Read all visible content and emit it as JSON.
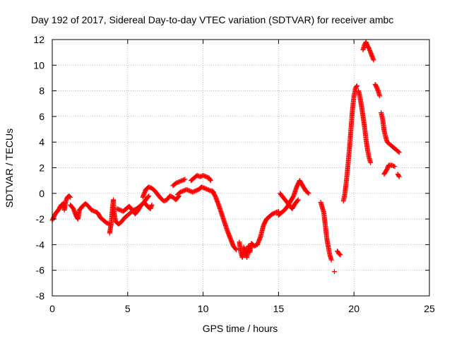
{
  "chart_data": {
    "type": "scatter",
    "title": "Day 192 of 2017, Sidereal Day-to-day VTEC variation (SDTVAR) for receiver ambc",
    "xlabel": "GPS time / hours",
    "ylabel": "SDTVAR / TECUs",
    "xlim": [
      0,
      25
    ],
    "ylim": [
      -8,
      12
    ],
    "xticks": [
      0,
      5,
      10,
      15,
      20,
      25
    ],
    "yticks": [
      -8,
      -6,
      -4,
      -2,
      0,
      2,
      4,
      6,
      8,
      10,
      12
    ],
    "x_tick_labels": [
      "0",
      "5",
      "10",
      "15",
      "20",
      "25"
    ],
    "y_tick_labels": [
      "-8",
      "-6",
      "-4",
      "-2",
      "0",
      "2",
      "4",
      "6",
      "8",
      "10",
      "12"
    ],
    "grid": true,
    "marker": "+",
    "colors": {
      "series": "#ff0000",
      "grid": "#a0a0a0",
      "axis": "#000000"
    },
    "series": [
      {
        "name": "SDTVAR",
        "segments": [
          [
            [
              0.0,
              -2.1
            ],
            [
              0.2,
              -1.6
            ],
            [
              0.4,
              -1.3
            ],
            [
              0.6,
              -0.9
            ],
            [
              0.75,
              -0.8
            ],
            [
              0.8,
              -1.3
            ],
            [
              0.9,
              -0.6
            ],
            [
              1.0,
              -0.3
            ],
            [
              1.1,
              -0.2
            ],
            [
              1.2,
              -0.3
            ]
          ],
          [
            [
              1.2,
              -0.9
            ],
            [
              1.4,
              -1.2
            ],
            [
              1.6,
              -1.8
            ],
            [
              1.7,
              -2.0
            ],
            [
              1.8,
              -1.3
            ],
            [
              2.0,
              -1.0
            ],
            [
              2.2,
              -0.8
            ],
            [
              2.4,
              -1.0
            ],
            [
              2.6,
              -1.3
            ],
            [
              2.8,
              -1.4
            ],
            [
              3.0,
              -1.5
            ],
            [
              3.2,
              -1.9
            ],
            [
              3.4,
              -2.1
            ],
            [
              3.6,
              -2.3
            ],
            [
              3.8,
              -2.4
            ]
          ],
          [
            [
              3.8,
              -3.1
            ],
            [
              3.9,
              -2.4
            ],
            [
              3.95,
              -1.8
            ],
            [
              4.0,
              -1.0
            ],
            [
              4.05,
              -0.5
            ],
            [
              4.1,
              -1.5
            ],
            [
              4.2,
              -2.2
            ],
            [
              4.4,
              -2.4
            ],
            [
              4.6,
              -2.2
            ],
            [
              4.8,
              -1.9
            ],
            [
              5.0,
              -1.7
            ],
            [
              5.2,
              -1.5
            ],
            [
              5.4,
              -1.3
            ],
            [
              5.6,
              -1.2
            ],
            [
              5.8,
              -1.0
            ],
            [
              6.0,
              -0.8
            ],
            [
              6.2,
              -0.5
            ],
            [
              6.4,
              -0.2
            ]
          ],
          [
            [
              4.3,
              -1.2
            ],
            [
              4.5,
              -1.3
            ],
            [
              4.7,
              -1.4
            ],
            [
              4.9,
              -1.2
            ],
            [
              5.1,
              -1.0
            ],
            [
              5.3,
              -1.3
            ],
            [
              5.5,
              -1.6
            ],
            [
              5.7,
              -1.3
            ],
            [
              5.9,
              -0.9
            ],
            [
              6.1,
              -0.7
            ],
            [
              6.3,
              -1.0
            ],
            [
              6.5,
              -1.2
            ],
            [
              6.6,
              -0.9
            ]
          ],
          [
            [
              6.0,
              -0.3
            ],
            [
              6.2,
              0.3
            ],
            [
              6.4,
              0.5
            ],
            [
              6.6,
              0.4
            ],
            [
              6.8,
              0.2
            ],
            [
              7.0,
              -0.1
            ],
            [
              7.2,
              -0.4
            ],
            [
              7.4,
              -0.6
            ],
            [
              7.6,
              -0.5
            ],
            [
              7.8,
              -0.2
            ],
            [
              8.0,
              -0.3
            ],
            [
              8.2,
              -0.5
            ],
            [
              8.4,
              -0.2
            ]
          ],
          [
            [
              8.0,
              0.6
            ],
            [
              8.2,
              0.8
            ],
            [
              8.4,
              0.9
            ],
            [
              8.6,
              1.0
            ],
            [
              8.8,
              1.1
            ]
          ],
          [
            [
              8.3,
              -0.1
            ],
            [
              8.5,
              0.1
            ],
            [
              8.7,
              0.2
            ],
            [
              8.9,
              0.3
            ],
            [
              9.1,
              0.2
            ],
            [
              9.3,
              0.1
            ],
            [
              9.5,
              0.2
            ],
            [
              9.7,
              0.3
            ],
            [
              9.9,
              0.5
            ],
            [
              10.1,
              0.4
            ],
            [
              10.3,
              0.3
            ],
            [
              10.5,
              0.2
            ],
            [
              10.7,
              0.1
            ]
          ],
          [
            [
              9.2,
              1.0
            ],
            [
              9.4,
              1.2
            ],
            [
              9.6,
              1.4
            ],
            [
              9.8,
              1.3
            ],
            [
              10.0,
              1.4
            ],
            [
              10.2,
              1.3
            ],
            [
              10.4,
              1.2
            ],
            [
              10.5,
              1.0
            ]
          ],
          [
            [
              10.6,
              0.2
            ],
            [
              10.8,
              -0.2
            ],
            [
              11.0,
              -0.8
            ],
            [
              11.2,
              -1.5
            ],
            [
              11.4,
              -2.2
            ],
            [
              11.6,
              -2.9
            ],
            [
              11.8,
              -3.5
            ],
            [
              12.0,
              -4.1
            ],
            [
              12.2,
              -4.4
            ]
          ],
          [
            [
              12.4,
              -3.8
            ],
            [
              12.5,
              -4.6
            ],
            [
              12.6,
              -5.0
            ],
            [
              12.7,
              -4.2
            ],
            [
              12.8,
              -4.6
            ],
            [
              12.9,
              -5.0
            ],
            [
              13.0,
              -4.1
            ],
            [
              13.1,
              -4.6
            ],
            [
              13.2,
              -3.9
            ],
            [
              13.4,
              -4.1
            ],
            [
              13.6,
              -4.0
            ],
            [
              13.8,
              -3.4
            ],
            [
              14.0,
              -2.5
            ],
            [
              14.2,
              -2.0
            ],
            [
              14.4,
              -1.8
            ],
            [
              14.6,
              -1.6
            ],
            [
              14.8,
              -1.5
            ],
            [
              15.0,
              -1.4
            ]
          ],
          [
            [
              15.0,
              -1.7
            ],
            [
              15.2,
              -1.5
            ],
            [
              15.4,
              -1.3
            ],
            [
              15.6,
              -1.0
            ],
            [
              15.8,
              -0.6
            ],
            [
              16.0,
              -0.2
            ],
            [
              16.2,
              0.5
            ],
            [
              16.4,
              1.0
            ],
            [
              16.6,
              0.6
            ],
            [
              16.8,
              0.2
            ],
            [
              17.0,
              0.0
            ]
          ],
          [
            [
              15.1,
              0.0
            ],
            [
              15.3,
              -0.3
            ],
            [
              15.5,
              -0.6
            ],
            [
              15.7,
              -0.9
            ],
            [
              15.9,
              -1.2
            ],
            [
              16.1,
              -0.8
            ],
            [
              16.3,
              -0.5
            ]
          ],
          [
            [
              17.8,
              -0.7
            ],
            [
              18.0,
              -1.5
            ],
            [
              18.1,
              -2.5
            ],
            [
              18.2,
              -3.5
            ],
            [
              18.3,
              -4.2
            ],
            [
              18.4,
              -4.8
            ],
            [
              18.5,
              -5.2
            ]
          ],
          [
            [
              18.7,
              -6.1
            ]
          ],
          [
            [
              18.9,
              -4.5
            ],
            [
              19.0,
              -4.7
            ],
            [
              19.1,
              -4.8
            ]
          ],
          [
            [
              19.3,
              -0.6
            ],
            [
              19.4,
              0.0
            ],
            [
              19.5,
              1.0
            ],
            [
              19.6,
              2.2
            ],
            [
              19.7,
              3.5
            ],
            [
              19.8,
              5.0
            ],
            [
              19.9,
              6.5
            ],
            [
              20.0,
              7.6
            ],
            [
              20.1,
              8.2
            ],
            [
              20.2,
              8.4
            ]
          ],
          [
            [
              20.3,
              8.0
            ],
            [
              20.4,
              7.5
            ],
            [
              20.5,
              6.8
            ],
            [
              20.6,
              6.0
            ],
            [
              20.7,
              5.2
            ],
            [
              20.8,
              4.2
            ],
            [
              20.9,
              3.4
            ],
            [
              21.0,
              2.8
            ],
            [
              21.1,
              2.4
            ]
          ],
          [
            [
              20.6,
              11.2
            ],
            [
              20.7,
              11.6
            ],
            [
              20.8,
              11.8
            ],
            [
              20.9,
              11.5
            ],
            [
              21.0,
              11.3
            ],
            [
              21.1,
              11.0
            ],
            [
              21.2,
              10.7
            ],
            [
              21.3,
              10.4
            ]
          ],
          [
            [
              21.4,
              8.5
            ],
            [
              21.5,
              8.3
            ],
            [
              21.6,
              8.0
            ],
            [
              21.7,
              7.6
            ]
          ],
          [
            [
              21.8,
              6.3
            ],
            [
              21.9,
              5.8
            ],
            [
              22.0,
              4.9
            ],
            [
              22.1,
              4.4
            ],
            [
              22.2,
              4.0
            ],
            [
              22.4,
              3.8
            ],
            [
              22.6,
              3.6
            ],
            [
              22.8,
              3.4
            ],
            [
              23.0,
              3.2
            ]
          ],
          [
            [
              22.0,
              1.5
            ],
            [
              22.1,
              1.7
            ],
            [
              22.2,
              1.9
            ],
            [
              22.3,
              2.2
            ],
            [
              22.5,
              2.2
            ],
            [
              22.7,
              2.1
            ]
          ],
          [
            [
              22.9,
              1.5
            ],
            [
              23.0,
              1.3
            ]
          ]
        ]
      }
    ]
  }
}
